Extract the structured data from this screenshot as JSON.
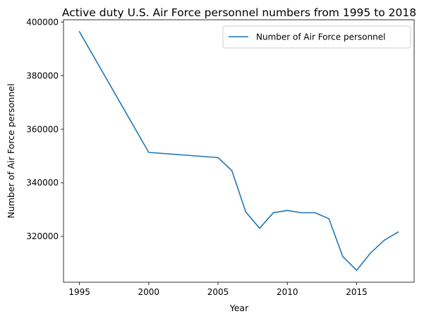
{
  "chart_data": {
    "type": "line",
    "title": "Active duty U.S. Air Force personnel numbers from 1995 to 2018",
    "xlabel": "Year",
    "ylabel": "Number of Air Force personnel",
    "x": [
      1995,
      2000,
      2005,
      2006,
      2007,
      2008,
      2009,
      2010,
      2011,
      2012,
      2013,
      2014,
      2015,
      2016,
      2017,
      2018
    ],
    "series": [
      {
        "name": "Number of Air Force personnel",
        "color": "#1f77b4",
        "values": [
          396382,
          351326,
          349385,
          344508,
          329094,
          323000,
          328825,
          329640,
          328809,
          328812,
          326573,
          312453,
          307324,
          313723,
          318548,
          321618
        ]
      }
    ],
    "xticks": [
      1995,
      2000,
      2005,
      2010,
      2015
    ],
    "xtick_labels": [
      "1995",
      "2000",
      "2005",
      "2010",
      "2015"
    ],
    "yticks": [
      320000,
      340000,
      360000,
      380000,
      400000
    ],
    "ytick_labels": [
      "320000",
      "340000",
      "360000",
      "380000",
      "400000"
    ],
    "xlim": [
      1993.85,
      2019.15
    ],
    "ylim": [
      302870,
      400836
    ],
    "grid": false,
    "legend_position": "upper right"
  }
}
